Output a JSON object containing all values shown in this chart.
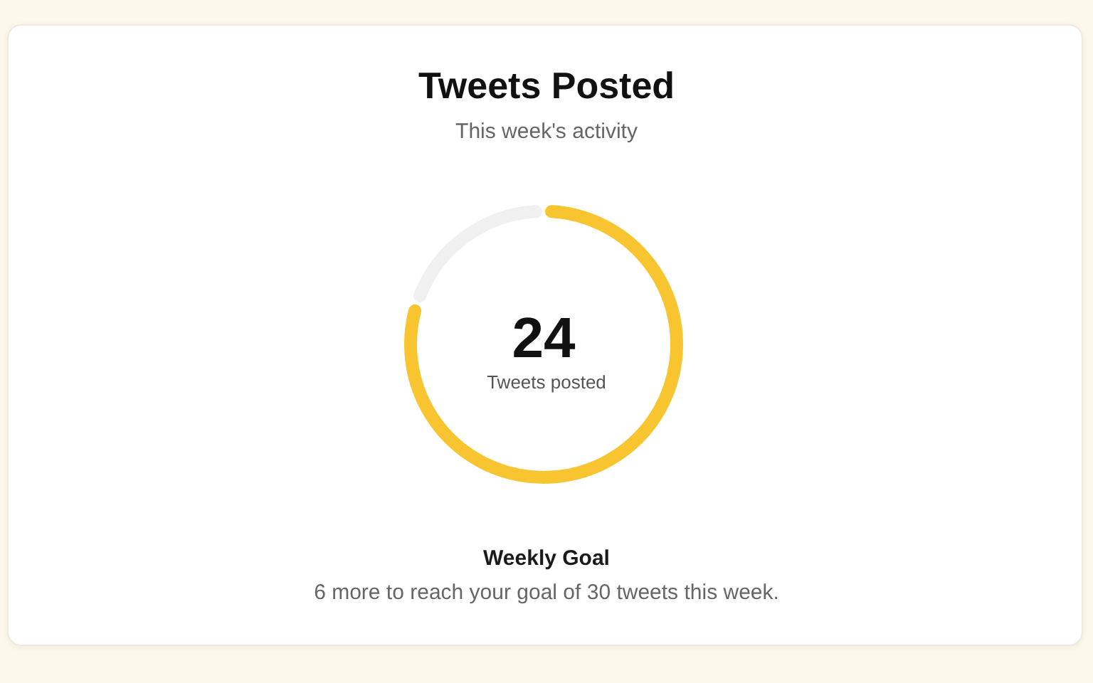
{
  "chart_data": {
    "type": "donut",
    "title": "Tweets Posted",
    "subtitle": "This week's activity",
    "categories": [
      null,
      null
    ],
    "values": [
      24,
      6
    ],
    "colors": [
      "#f8c42f",
      "#f0f0f0"
    ],
    "value_labels": [
      "24",
      null
    ],
    "annotations": [
      "Tweets posted",
      "Weekly Goal",
      "6 more to reach your goal of 30 tweets this week."
    ]
  }
}
